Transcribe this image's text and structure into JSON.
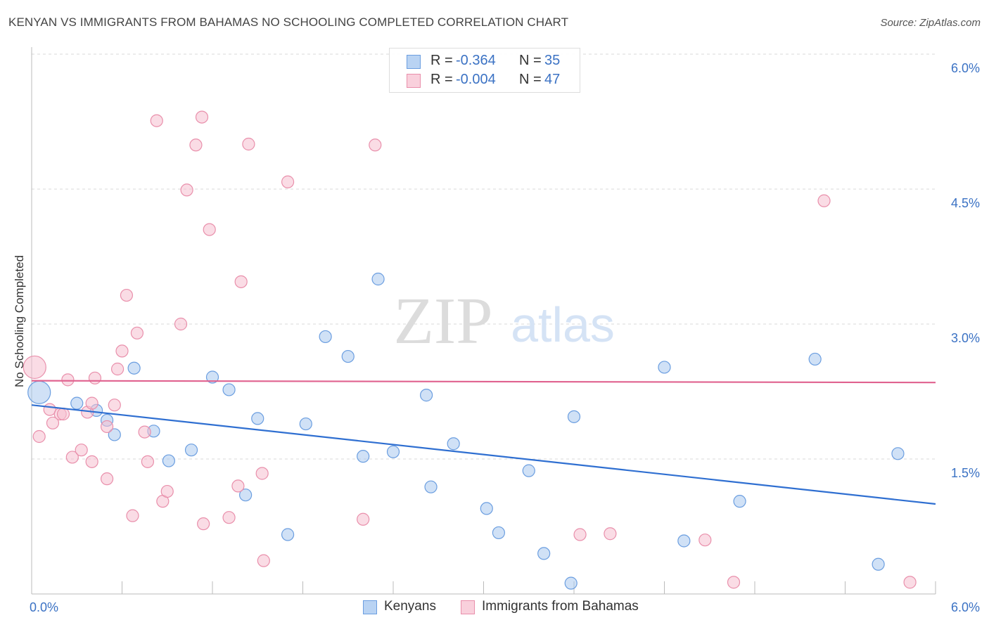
{
  "title": "KENYAN VS IMMIGRANTS FROM BAHAMAS NO SCHOOLING COMPLETED CORRELATION CHART",
  "source": "Source: ZipAtlas.com",
  "watermark": {
    "zip": "ZIP",
    "atlas": "atlas"
  },
  "colors": {
    "blue_fill": "#a9c8ef",
    "blue_stroke": "#6b9ee0",
    "blue_line": "#2f6fd1",
    "pink_fill": "#f6c0d0",
    "pink_stroke": "#e98fab",
    "pink_line": "#e0628f",
    "axis_label": "#3b72c4",
    "grid": "#d8d8d8"
  },
  "legend": {
    "rows": [
      {
        "r_label": "R =",
        "r_value": "-0.364",
        "n_label": "N =",
        "n_value": "35"
      },
      {
        "r_label": "R =",
        "r_value": "-0.004",
        "n_label": "N =",
        "n_value": "47"
      }
    ]
  },
  "bottom_legend": [
    "Kenyans",
    "Immigrants from Bahamas"
  ],
  "chart_data": {
    "type": "scatter",
    "ylabel": "No Schooling Completed",
    "xlim": [
      0,
      6
    ],
    "ylim": [
      0,
      6
    ],
    "x_tick_labels": [
      "0.0%",
      "6.0%"
    ],
    "y_ticks": [
      {
        "value": 1.5,
        "label": "1.5%"
      },
      {
        "value": 3.0,
        "label": "3.0%"
      },
      {
        "value": 4.5,
        "label": "4.5%"
      },
      {
        "value": 6.0,
        "label": "6.0%"
      }
    ],
    "grid": true,
    "legend_position": "top-center",
    "series": [
      {
        "name": "Kenyans",
        "color": "blue",
        "trend": {
          "x": [
            0,
            6
          ],
          "y": [
            2.1,
            1.0
          ]
        },
        "points": [
          {
            "x": 0.05,
            "y": 2.24,
            "size": "large"
          },
          {
            "x": 0.3,
            "y": 2.12
          },
          {
            "x": 0.43,
            "y": 2.04
          },
          {
            "x": 0.5,
            "y": 1.93
          },
          {
            "x": 0.55,
            "y": 1.77
          },
          {
            "x": 0.68,
            "y": 2.51
          },
          {
            "x": 0.81,
            "y": 1.81
          },
          {
            "x": 0.91,
            "y": 1.48
          },
          {
            "x": 1.06,
            "y": 1.6
          },
          {
            "x": 1.2,
            "y": 2.41
          },
          {
            "x": 1.31,
            "y": 2.27
          },
          {
            "x": 1.42,
            "y": 1.1
          },
          {
            "x": 1.5,
            "y": 1.95
          },
          {
            "x": 1.7,
            "y": 0.66
          },
          {
            "x": 1.82,
            "y": 1.89
          },
          {
            "x": 1.95,
            "y": 2.86
          },
          {
            "x": 2.1,
            "y": 2.64
          },
          {
            "x": 2.2,
            "y": 1.53
          },
          {
            "x": 2.3,
            "y": 3.5
          },
          {
            "x": 2.4,
            "y": 1.58
          },
          {
            "x": 2.62,
            "y": 2.21
          },
          {
            "x": 2.65,
            "y": 1.19
          },
          {
            "x": 2.8,
            "y": 1.67
          },
          {
            "x": 3.02,
            "y": 0.95
          },
          {
            "x": 3.1,
            "y": 0.68
          },
          {
            "x": 3.3,
            "y": 1.37
          },
          {
            "x": 3.4,
            "y": 0.45
          },
          {
            "x": 3.58,
            "y": 0.12
          },
          {
            "x": 3.6,
            "y": 1.97
          },
          {
            "x": 4.2,
            "y": 2.52
          },
          {
            "x": 4.33,
            "y": 0.59
          },
          {
            "x": 4.7,
            "y": 1.03
          },
          {
            "x": 5.2,
            "y": 2.61
          },
          {
            "x": 5.62,
            "y": 0.33
          },
          {
            "x": 5.75,
            "y": 1.56
          }
        ]
      },
      {
        "name": "Immigrants from Bahamas",
        "color": "pink",
        "trend": {
          "x": [
            0,
            6
          ],
          "y": [
            2.37,
            2.35
          ]
        },
        "points": [
          {
            "x": 0.02,
            "y": 2.52,
            "size": "large"
          },
          {
            "x": 0.05,
            "y": 1.75
          },
          {
            "x": 0.12,
            "y": 2.05
          },
          {
            "x": 0.14,
            "y": 1.9
          },
          {
            "x": 0.19,
            "y": 2.0
          },
          {
            "x": 0.21,
            "y": 2.0
          },
          {
            "x": 0.24,
            "y": 2.38
          },
          {
            "x": 0.27,
            "y": 1.52
          },
          {
            "x": 0.33,
            "y": 1.6
          },
          {
            "x": 0.37,
            "y": 2.02
          },
          {
            "x": 0.4,
            "y": 2.12
          },
          {
            "x": 0.4,
            "y": 1.47
          },
          {
            "x": 0.42,
            "y": 2.4
          },
          {
            "x": 0.5,
            "y": 1.86
          },
          {
            "x": 0.5,
            "y": 1.28
          },
          {
            "x": 0.55,
            "y": 2.1
          },
          {
            "x": 0.57,
            "y": 2.5
          },
          {
            "x": 0.6,
            "y": 2.7
          },
          {
            "x": 0.63,
            "y": 3.32
          },
          {
            "x": 0.67,
            "y": 0.87
          },
          {
            "x": 0.7,
            "y": 2.9
          },
          {
            "x": 0.75,
            "y": 1.8
          },
          {
            "x": 0.77,
            "y": 1.47
          },
          {
            "x": 0.83,
            "y": 5.26
          },
          {
            "x": 0.87,
            "y": 1.03
          },
          {
            "x": 0.9,
            "y": 1.14
          },
          {
            "x": 0.99,
            "y": 3.0
          },
          {
            "x": 1.03,
            "y": 4.49
          },
          {
            "x": 1.09,
            "y": 4.99
          },
          {
            "x": 1.13,
            "y": 5.3
          },
          {
            "x": 1.14,
            "y": 0.78
          },
          {
            "x": 1.18,
            "y": 4.05
          },
          {
            "x": 1.31,
            "y": 0.85
          },
          {
            "x": 1.37,
            "y": 1.2
          },
          {
            "x": 1.39,
            "y": 3.47
          },
          {
            "x": 1.44,
            "y": 5.0
          },
          {
            "x": 1.53,
            "y": 1.34
          },
          {
            "x": 1.54,
            "y": 0.37
          },
          {
            "x": 1.7,
            "y": 4.58
          },
          {
            "x": 2.2,
            "y": 0.83
          },
          {
            "x": 2.28,
            "y": 4.99
          },
          {
            "x": 3.64,
            "y": 0.66
          },
          {
            "x": 3.84,
            "y": 0.67
          },
          {
            "x": 4.47,
            "y": 0.6
          },
          {
            "x": 4.66,
            "y": 0.13
          },
          {
            "x": 5.26,
            "y": 4.37
          },
          {
            "x": 5.83,
            "y": 0.13
          }
        ]
      }
    ]
  }
}
